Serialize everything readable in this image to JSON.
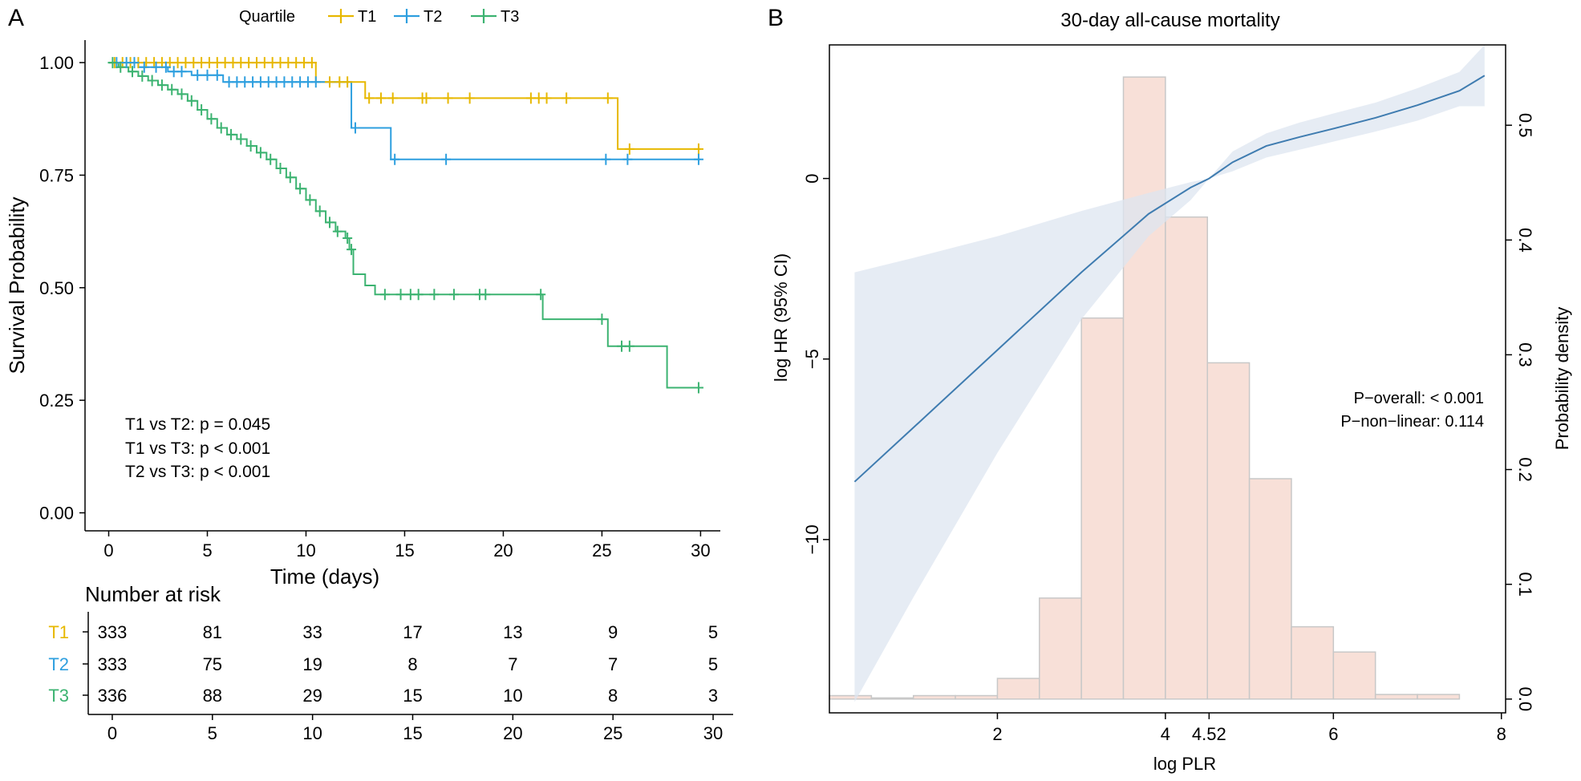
{
  "chart_data": [
    {
      "panel": "A",
      "type": "line",
      "subtype": "kaplan-meier",
      "title": "",
      "xlabel": "Time (days)",
      "ylabel": "Survival Probability",
      "xlim": [
        -1.2,
        31.0
      ],
      "ylim": [
        -0.04,
        1.05
      ],
      "xticks": [
        "0",
        "5",
        "10",
        "15",
        "20",
        "25",
        "30"
      ],
      "yticks": [
        "0.00",
        "0.25",
        "0.50",
        "0.75",
        "1.00"
      ],
      "legend": {
        "title": "Quartile",
        "position": "top",
        "labels": [
          "T1",
          "T2",
          "T3"
        ]
      },
      "annotations": [
        "T1 vs T2: p = 0.045",
        "T1 vs T3: p < 0.001",
        "T2 vs T3: p < 0.001"
      ],
      "series": [
        {
          "name": "T1",
          "color": "#E7B800",
          "steps": [
            [
              0,
              1.0
            ],
            [
              10.5,
              0.957
            ],
            [
              13.0,
              0.921
            ],
            [
              25.8,
              0.808
            ],
            [
              30,
              0.808
            ]
          ],
          "censors": [
            [
              0.3,
              1.0
            ],
            [
              0.7,
              1.0
            ],
            [
              1.1,
              1.0
            ],
            [
              1.5,
              1.0
            ],
            [
              1.9,
              1.0
            ],
            [
              2.3,
              1.0
            ],
            [
              2.7,
              1.0
            ],
            [
              3.1,
              1.0
            ],
            [
              3.5,
              1.0
            ],
            [
              3.9,
              1.0
            ],
            [
              4.3,
              1.0
            ],
            [
              4.7,
              1.0
            ],
            [
              5.1,
              1.0
            ],
            [
              5.5,
              1.0
            ],
            [
              5.9,
              1.0
            ],
            [
              6.3,
              1.0
            ],
            [
              6.7,
              1.0
            ],
            [
              7.1,
              1.0
            ],
            [
              7.5,
              1.0
            ],
            [
              7.9,
              1.0
            ],
            [
              8.3,
              1.0
            ],
            [
              8.7,
              1.0
            ],
            [
              9.1,
              1.0
            ],
            [
              9.5,
              1.0
            ],
            [
              9.9,
              1.0
            ],
            [
              10.3,
              1.0
            ],
            [
              11.2,
              0.957
            ],
            [
              11.7,
              0.957
            ],
            [
              12.1,
              0.957
            ],
            [
              13.2,
              0.921
            ],
            [
              13.8,
              0.921
            ],
            [
              14.4,
              0.921
            ],
            [
              15.9,
              0.921
            ],
            [
              16.1,
              0.921
            ],
            [
              17.2,
              0.921
            ],
            [
              18.3,
              0.921
            ],
            [
              21.4,
              0.921
            ],
            [
              21.8,
              0.921
            ],
            [
              22.2,
              0.921
            ],
            [
              23.2,
              0.921
            ],
            [
              25.3,
              0.921
            ],
            [
              26.4,
              0.808
            ],
            [
              29.9,
              0.808
            ]
          ]
        },
        {
          "name": "T2",
          "color": "#2E9FDF",
          "steps": [
            [
              0,
              1.0
            ],
            [
              1.5,
              0.99
            ],
            [
              3.0,
              0.98
            ],
            [
              4.2,
              0.972
            ],
            [
              5.8,
              0.957
            ],
            [
              12.3,
              0.855
            ],
            [
              14.3,
              0.785
            ],
            [
              30,
              0.785
            ]
          ],
          "censors": [
            [
              0.4,
              1.0
            ],
            [
              0.9,
              1.0
            ],
            [
              1.3,
              1.0
            ],
            [
              1.8,
              0.99
            ],
            [
              2.4,
              0.99
            ],
            [
              2.9,
              0.99
            ],
            [
              3.3,
              0.98
            ],
            [
              3.7,
              0.98
            ],
            [
              4.5,
              0.972
            ],
            [
              5.0,
              0.972
            ],
            [
              5.5,
              0.972
            ],
            [
              6.1,
              0.957
            ],
            [
              6.5,
              0.957
            ],
            [
              6.9,
              0.957
            ],
            [
              7.3,
              0.957
            ],
            [
              7.7,
              0.957
            ],
            [
              8.1,
              0.957
            ],
            [
              8.5,
              0.957
            ],
            [
              8.9,
              0.957
            ],
            [
              9.3,
              0.957
            ],
            [
              9.7,
              0.957
            ],
            [
              10.1,
              0.957
            ],
            [
              10.5,
              0.957
            ],
            [
              12.5,
              0.855
            ],
            [
              14.5,
              0.785
            ],
            [
              17.1,
              0.785
            ],
            [
              25.2,
              0.785
            ],
            [
              26.3,
              0.785
            ],
            [
              29.9,
              0.785
            ]
          ]
        },
        {
          "name": "T3",
          "color": "#3CB371",
          "steps": [
            [
              0,
              1.0
            ],
            [
              0.5,
              0.99
            ],
            [
              1.0,
              0.98
            ],
            [
              1.5,
              0.97
            ],
            [
              2.0,
              0.96
            ],
            [
              2.5,
              0.95
            ],
            [
              3.0,
              0.94
            ],
            [
              3.5,
              0.93
            ],
            [
              4.0,
              0.915
            ],
            [
              4.5,
              0.895
            ],
            [
              5.0,
              0.875
            ],
            [
              5.5,
              0.855
            ],
            [
              6.0,
              0.84
            ],
            [
              6.5,
              0.83
            ],
            [
              7.0,
              0.815
            ],
            [
              7.5,
              0.8
            ],
            [
              8.0,
              0.785
            ],
            [
              8.5,
              0.765
            ],
            [
              9.0,
              0.745
            ],
            [
              9.5,
              0.72
            ],
            [
              10.0,
              0.695
            ],
            [
              10.5,
              0.67
            ],
            [
              11.0,
              0.645
            ],
            [
              11.5,
              0.625
            ],
            [
              12.0,
              0.61
            ],
            [
              12.2,
              0.585
            ],
            [
              12.4,
              0.53
            ],
            [
              13.0,
              0.505
            ],
            [
              13.5,
              0.485
            ],
            [
              22.0,
              0.43
            ],
            [
              25.3,
              0.37
            ],
            [
              28.3,
              0.278
            ],
            [
              30,
              0.278
            ]
          ],
          "censors": [
            [
              0.2,
              1.0
            ],
            [
              0.6,
              0.99
            ],
            [
              1.2,
              0.98
            ],
            [
              1.7,
              0.97
            ],
            [
              2.2,
              0.96
            ],
            [
              2.7,
              0.95
            ],
            [
              3.2,
              0.94
            ],
            [
              3.7,
              0.93
            ],
            [
              4.2,
              0.915
            ],
            [
              4.7,
              0.895
            ],
            [
              5.2,
              0.875
            ],
            [
              5.7,
              0.855
            ],
            [
              6.2,
              0.84
            ],
            [
              6.7,
              0.83
            ],
            [
              7.2,
              0.815
            ],
            [
              7.7,
              0.8
            ],
            [
              8.2,
              0.785
            ],
            [
              8.7,
              0.765
            ],
            [
              9.2,
              0.745
            ],
            [
              9.7,
              0.72
            ],
            [
              10.2,
              0.695
            ],
            [
              10.7,
              0.67
            ],
            [
              11.2,
              0.645
            ],
            [
              11.6,
              0.625
            ],
            [
              12.1,
              0.61
            ],
            [
              12.3,
              0.585
            ],
            [
              14.0,
              0.485
            ],
            [
              14.8,
              0.485
            ],
            [
              15.3,
              0.485
            ],
            [
              15.7,
              0.485
            ],
            [
              16.5,
              0.485
            ],
            [
              17.5,
              0.485
            ],
            [
              18.8,
              0.485
            ],
            [
              19.1,
              0.485
            ],
            [
              21.9,
              0.485
            ],
            [
              25.0,
              0.43
            ],
            [
              26.0,
              0.37
            ],
            [
              26.4,
              0.37
            ],
            [
              29.9,
              0.278
            ]
          ]
        }
      ],
      "risk_table": {
        "title": "Number at risk",
        "time_ticks": [
          "0",
          "5",
          "10",
          "15",
          "20",
          "25",
          "30"
        ],
        "rows": [
          {
            "label": "T1",
            "color": "#E7B800",
            "values": [
              "333",
              "81",
              "33",
              "17",
              "13",
              "9",
              "5"
            ]
          },
          {
            "label": "T2",
            "color": "#2E9FDF",
            "values": [
              "333",
              "75",
              "19",
              "8",
              "7",
              "7",
              "5"
            ]
          },
          {
            "label": "T3",
            "color": "#3CB371",
            "values": [
              "336",
              "88",
              "29",
              "15",
              "10",
              "8",
              "3"
            ]
          }
        ]
      }
    },
    {
      "panel": "B",
      "type": "line",
      "subtype": "restricted-cubic-spline-with-histogram",
      "title": "30-day all-cause mortality",
      "xlabel": "log PLR",
      "ylabel": "log HR (95% CI)",
      "ylabel_right": "Probability density",
      "xlim": [
        0.0,
        8.05
      ],
      "ylim": [
        -14.8,
        3.7
      ],
      "ylim_right": [
        -0.012,
        0.57
      ],
      "xticks": [
        2,
        4,
        4.52,
        6,
        8
      ],
      "xtick_labels": [
        "2",
        "4",
        "4.52",
        "6",
        "8"
      ],
      "yticks": [
        0,
        -5,
        -10
      ],
      "ytick_labels": [
        "0",
        "−5",
        "−10"
      ],
      "yticks_right": [
        "0.0",
        "0.1",
        "0.2",
        "0.3",
        "0.4",
        "0.5"
      ],
      "annotations": [
        "P−overall: < 0.001",
        "P−non−linear: 0.114"
      ],
      "spline": {
        "color": "#3F7CB0",
        "ci_color": "#DDE6F0",
        "x": [
          0.3,
          1.0,
          2.0,
          3.0,
          3.8,
          4.3,
          4.52,
          4.8,
          5.2,
          5.6,
          6.0,
          6.5,
          7.0,
          7.5,
          7.8
        ],
        "y": [
          -8.4,
          -6.9,
          -4.75,
          -2.6,
          -0.98,
          -0.25,
          0.0,
          0.45,
          0.9,
          1.15,
          1.38,
          1.68,
          2.03,
          2.43,
          2.85
        ],
        "lower": [
          -14.5,
          -11.6,
          -7.6,
          -3.9,
          -1.6,
          -0.6,
          0.0,
          0.2,
          0.58,
          0.8,
          1.02,
          1.3,
          1.6,
          2.0,
          2.0
        ],
        "upper": [
          -2.6,
          -2.2,
          -1.6,
          -0.9,
          -0.4,
          -0.1,
          0.0,
          0.75,
          1.25,
          1.55,
          1.8,
          2.1,
          2.5,
          2.95,
          3.7
        ]
      },
      "histogram": {
        "color": "#F8E0D8",
        "edge": "#C8C8C8",
        "bin_edges": [
          0.0,
          0.5,
          1.0,
          1.5,
          2.0,
          2.5,
          3.0,
          3.5,
          4.0,
          4.5,
          5.0,
          5.5,
          6.0,
          6.5,
          7.0,
          7.5,
          8.0
        ],
        "density": [
          0.003,
          0.001,
          0.003,
          0.003,
          0.018,
          0.088,
          0.332,
          0.542,
          0.42,
          0.293,
          0.192,
          0.063,
          0.041,
          0.004,
          0.004,
          0.0
        ]
      }
    }
  ]
}
